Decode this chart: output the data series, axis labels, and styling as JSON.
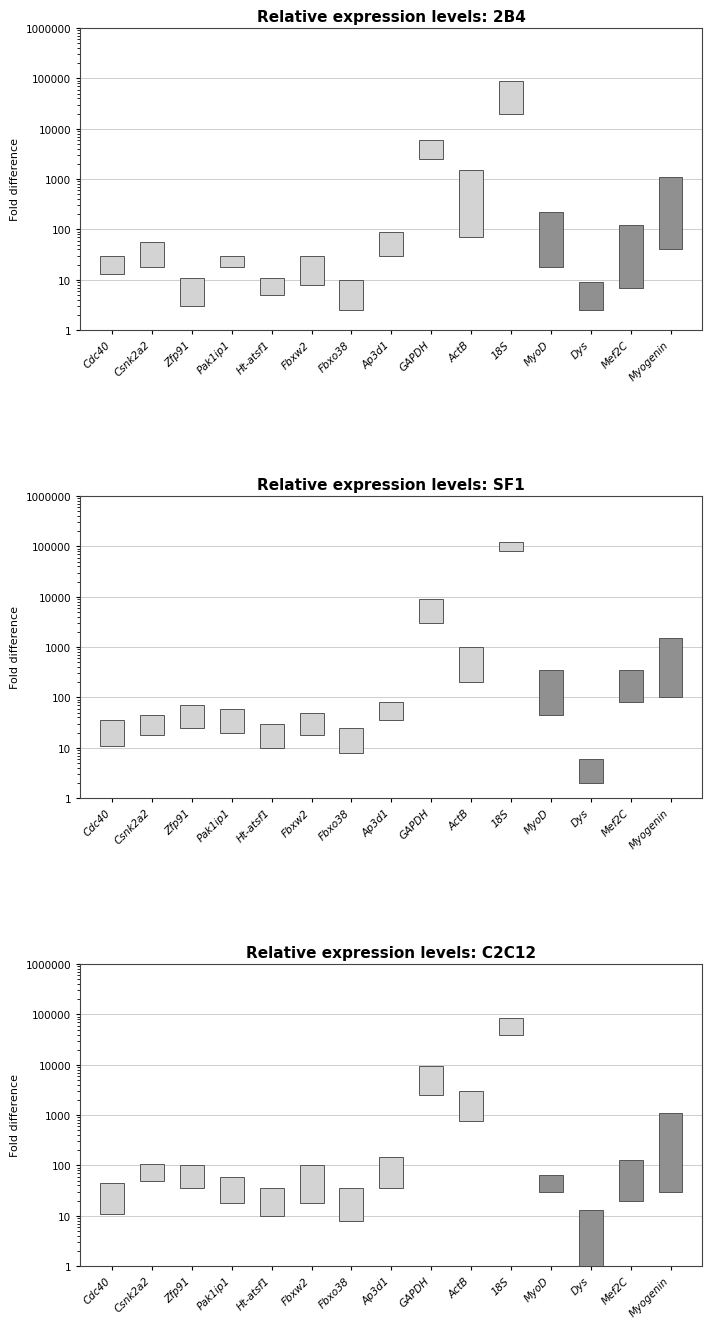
{
  "panels": [
    {
      "title": "Relative expression levels: 2B4",
      "genes": [
        "Cdc40",
        "Csnk2a2",
        "Zfp91",
        "Pak1ip1",
        "Ht-atsf1",
        "Fbxw2",
        "Fbxo38",
        "Ap3d1",
        "GAPDH",
        "ActB",
        "18S",
        "MyoD",
        "Dys",
        "Mef2C",
        "Myogenin"
      ],
      "boxes": [
        {
          "low": 13,
          "high": 30
        },
        {
          "low": 18,
          "high": 55
        },
        {
          "low": 3,
          "high": 11
        },
        {
          "low": 18,
          "high": 30
        },
        {
          "low": 5,
          "high": 11
        },
        {
          "low": 8,
          "high": 30
        },
        {
          "low": 2.5,
          "high": 10
        },
        {
          "low": 30,
          "high": 90
        },
        {
          "low": 2500,
          "high": 6000
        },
        {
          "low": 70,
          "high": 1500
        },
        {
          "low": 20000,
          "high": 90000
        },
        {
          "low": 18,
          "high": 220
        },
        {
          "low": 2.5,
          "high": 9
        },
        {
          "low": 7,
          "high": 120
        },
        {
          "low": 40,
          "high": 1100
        }
      ],
      "dark_boxes": [
        false,
        false,
        false,
        false,
        false,
        false,
        false,
        false,
        false,
        false,
        false,
        true,
        true,
        true,
        true
      ]
    },
    {
      "title": "Relative expression levels: SF1",
      "genes": [
        "Cdc40",
        "Csnk2a2",
        "Zfp91",
        "Pak1ip1",
        "Ht-atsf1",
        "Fbxw2",
        "Fbxo38",
        "Ap3d1",
        "GAPDH",
        "ActB",
        "18S",
        "MyoD",
        "Dys",
        "Mef2C",
        "Myogenin"
      ],
      "boxes": [
        {
          "low": 11,
          "high": 35
        },
        {
          "low": 18,
          "high": 45
        },
        {
          "low": 25,
          "high": 70
        },
        {
          "low": 20,
          "high": 60
        },
        {
          "low": 10,
          "high": 30
        },
        {
          "low": 18,
          "high": 50
        },
        {
          "low": 8,
          "high": 25
        },
        {
          "low": 35,
          "high": 80
        },
        {
          "low": 3000,
          "high": 9000
        },
        {
          "low": 200,
          "high": 1000
        },
        {
          "low": 80000,
          "high": 120000
        },
        {
          "low": 45,
          "high": 350
        },
        {
          "low": 2,
          "high": 6
        },
        {
          "low": 80,
          "high": 350
        },
        {
          "low": 100,
          "high": 1500
        }
      ],
      "dark_boxes": [
        false,
        false,
        false,
        false,
        false,
        false,
        false,
        false,
        false,
        false,
        false,
        true,
        true,
        true,
        true
      ]
    },
    {
      "title": "Relative expression levels: C2C12",
      "genes": [
        "Cdc40",
        "Csnk2a2",
        "Zfp91",
        "Pak1ip1",
        "Ht-atsf1",
        "Fbxw2",
        "Fbxo38",
        "Ap3d1",
        "GAPDH",
        "ActB",
        "18S",
        "MyoD",
        "Dys",
        "Mef2C",
        "Myogenin"
      ],
      "boxes": [
        {
          "low": 11,
          "high": 45
        },
        {
          "low": 50,
          "high": 105
        },
        {
          "low": 35,
          "high": 100
        },
        {
          "low": 18,
          "high": 60
        },
        {
          "low": 10,
          "high": 35
        },
        {
          "low": 18,
          "high": 100
        },
        {
          "low": 8,
          "high": 35
        },
        {
          "low": 35,
          "high": 150
        },
        {
          "low": 2500,
          "high": 9500
        },
        {
          "low": 750,
          "high": 3000
        },
        {
          "low": 40000,
          "high": 85000
        },
        {
          "low": 30,
          "high": 65
        },
        {
          "low": 1,
          "high": 13
        },
        {
          "low": 20,
          "high": 130
        },
        {
          "low": 30,
          "high": 1100
        }
      ],
      "dark_boxes": [
        false,
        false,
        false,
        false,
        false,
        false,
        false,
        false,
        false,
        false,
        false,
        true,
        true,
        true,
        true
      ]
    }
  ],
  "light_color": "#d3d3d3",
  "dark_color": "#909090",
  "edge_color": "#555555",
  "ylabel": "Fold difference",
  "ylim_low": 1,
  "ylim_high": 1000000,
  "background_color": "#ffffff",
  "title_fontsize": 11,
  "label_fontsize": 8,
  "tick_fontsize": 7.5,
  "yticks": [
    1,
    10,
    100,
    1000,
    10000,
    100000,
    1000000
  ],
  "ytick_labels": [
    "1",
    "10",
    "100",
    "1000",
    "10000",
    "100000",
    "1000000"
  ]
}
